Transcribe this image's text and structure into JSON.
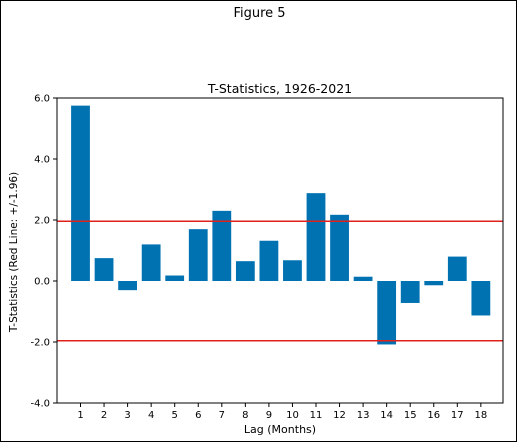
{
  "figure": {
    "title": "Figure 5"
  },
  "chart_data": {
    "type": "bar",
    "title": "T-Statistics, 1926-2021",
    "xlabel": "Lag (Months)",
    "ylabel": "T-Statistics (Red Line: +/-1.96)",
    "categories": [
      "1",
      "2",
      "3",
      "4",
      "5",
      "6",
      "7",
      "8",
      "9",
      "10",
      "11",
      "12",
      "13",
      "14",
      "15",
      "16",
      "17",
      "18"
    ],
    "values": [
      5.75,
      0.75,
      -0.3,
      1.2,
      0.18,
      1.7,
      2.3,
      0.65,
      1.32,
      0.68,
      2.88,
      2.17,
      0.14,
      -2.08,
      -0.72,
      -0.14,
      0.8,
      -1.13
    ],
    "ylim": [
      -4.0,
      6.0
    ],
    "yticks": [
      -4.0,
      -2.0,
      0.0,
      2.0,
      4.0,
      6.0
    ],
    "ytick_labels": [
      "-4.0",
      "-2.0",
      "0.0",
      "2.0",
      "4.0",
      "6.0"
    ],
    "reference_lines": [
      1.96,
      -1.96
    ],
    "bar_color": "#0072b2",
    "reference_line_color": "#e0201b",
    "grid": false,
    "legend": "none"
  }
}
